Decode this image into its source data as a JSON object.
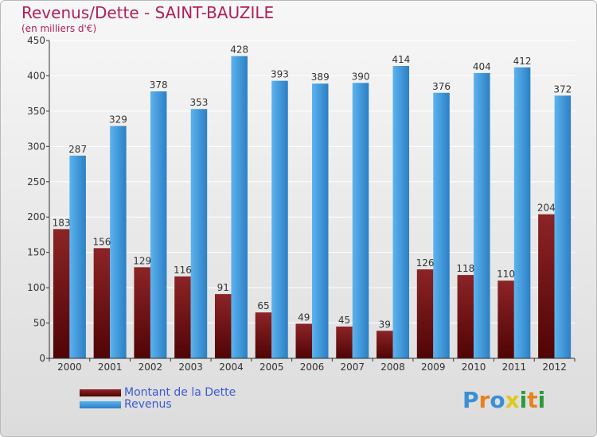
{
  "title": "Revenus/Dette - SAINT-BAUZILE",
  "subtitle": "(en milliers d'€)",
  "legend": {
    "items": [
      {
        "label": "Montant de la Dette",
        "color": "#7a1416"
      },
      {
        "label": "Revenus",
        "color": "#4aa3e8"
      }
    ]
  },
  "logo": {
    "text": "Proxiti",
    "colors": [
      "#3a8fd6",
      "#e8811f",
      "#3a8fd6",
      "#e0c81a",
      "#2a9a3a",
      "#e8811f",
      "#2a9a3a"
    ]
  },
  "colors": {
    "title": "#b0205a",
    "debt_top": "#8c2426",
    "debt_bottom": "#500405",
    "revenue_light": "#5bb3ee",
    "revenue_dark": "#2c7fc4"
  },
  "chart_data": {
    "type": "bar",
    "title": "Revenus/Dette - SAINT-BAUZILE",
    "subtitle": "(en milliers d'€)",
    "categories": [
      "2000",
      "2001",
      "2002",
      "2003",
      "2004",
      "2005",
      "2006",
      "2007",
      "2008",
      "2009",
      "2010",
      "2011",
      "2012"
    ],
    "series": [
      {
        "name": "Montant de la Dette",
        "values": [
          183,
          156,
          129,
          116,
          91,
          65,
          49,
          45,
          39,
          126,
          118,
          110,
          204
        ]
      },
      {
        "name": "Revenus",
        "values": [
          287,
          329,
          378,
          353,
          428,
          393,
          389,
          390,
          414,
          376,
          404,
          412,
          372
        ]
      }
    ],
    "ylim": [
      0,
      450
    ],
    "yticks": [
      0,
      50,
      100,
      150,
      200,
      250,
      300,
      350,
      400,
      450
    ],
    "grid": true,
    "legend_position": "bottom-left",
    "data_labels": true
  }
}
